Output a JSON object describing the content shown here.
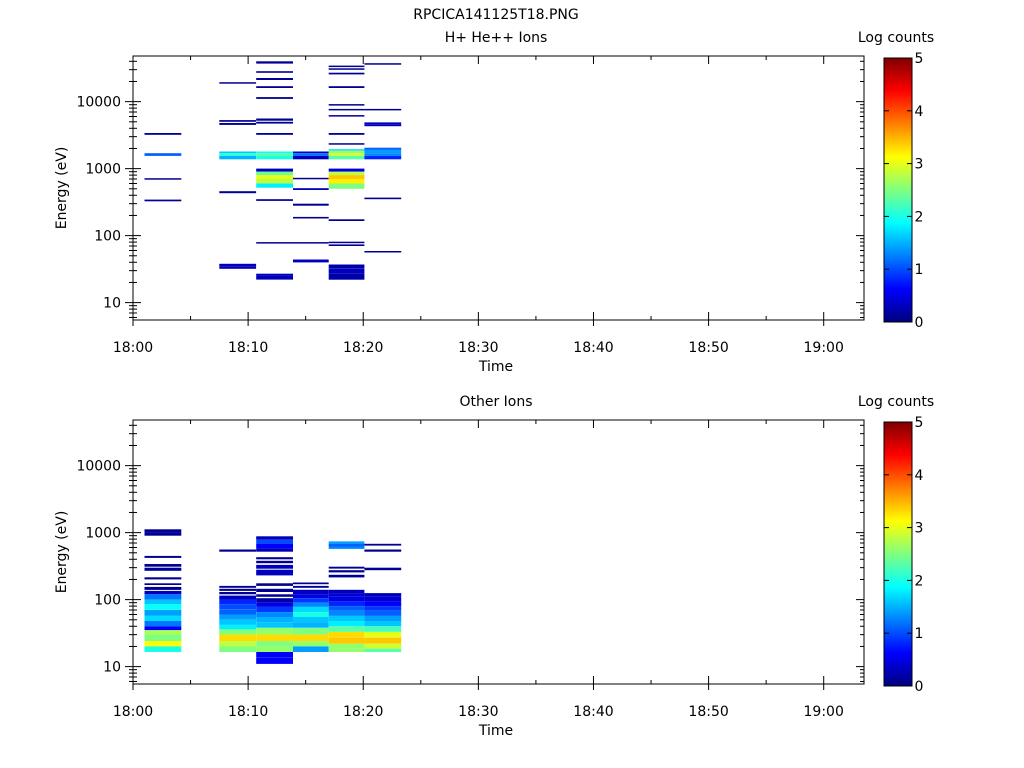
{
  "page_title": "RPCICA141125T18.PNG",
  "colormap": [
    "#00007f",
    "#0000ff",
    "#007fff",
    "#00ffff",
    "#7fff7f",
    "#ffff00",
    "#ff7f00",
    "#ff0000",
    "#7f0000"
  ],
  "chart_data": [
    {
      "type": "heatmap",
      "title": "H+ He++ Ions",
      "xlabel": "Time",
      "ylabel": "Energy (eV)",
      "x_tick_labels": [
        "18:00",
        "18:10",
        "18:20",
        "18:30",
        "18:40",
        "18:50",
        "19:00"
      ],
      "y_tick_labels": [
        "10",
        "100",
        "1000",
        "10000"
      ],
      "y_scale": "log",
      "ylim": [
        5.5,
        48000
      ],
      "xlim_minutes": [
        0,
        63.5
      ],
      "colorbar": {
        "label": "Log counts",
        "ticks": [
          "0",
          "1",
          "2",
          "3",
          "4",
          "5"
        ],
        "range": [
          0,
          5
        ]
      },
      "columns": [
        {
          "t0": 1.0,
          "t1": 4.2,
          "bins": [
            [
              3200,
              3400,
              0.1
            ],
            [
              1550,
              1700,
              1.1
            ],
            [
              690,
              720,
              0.1
            ],
            [
              325,
              345,
              0.1
            ]
          ]
        },
        {
          "t0": 7.5,
          "t1": 10.7,
          "bins": [
            [
              18500,
              19500,
              0.1
            ],
            [
              5000,
              5300,
              0.1
            ],
            [
              4500,
              4800,
              0.1
            ],
            [
              1700,
              1800,
              1.6
            ],
            [
              1550,
              1700,
              2.1
            ],
            [
              1380,
              1550,
              1.5
            ],
            [
              430,
              460,
              0.1
            ],
            [
              35,
              38,
              0.3
            ],
            [
              32,
              35,
              0.3
            ]
          ]
        },
        {
          "t0": 10.7,
          "t1": 13.9,
          "bins": [
            [
              37000,
              40000,
              0.1
            ],
            [
              27000,
              28500,
              0.1
            ],
            [
              21000,
              22500,
              0.1
            ],
            [
              16000,
              17000,
              0.1
            ],
            [
              11000,
              11700,
              0.1
            ],
            [
              5200,
              5600,
              0.1
            ],
            [
              4700,
              5000,
              0.1
            ],
            [
              3200,
              3400,
              0.1
            ],
            [
              1700,
              1800,
              1.9
            ],
            [
              1550,
              1700,
              2.3
            ],
            [
              1380,
              1550,
              2.0
            ],
            [
              900,
              1000,
              0.3
            ],
            [
              800,
              900,
              2.4
            ],
            [
              700,
              800,
              3.0
            ],
            [
              600,
              700,
              2.8
            ],
            [
              520,
              600,
              1.8
            ],
            [
              330,
              350,
              0.1
            ],
            [
              76,
              80,
              0.1
            ],
            [
              25,
              27,
              0.3
            ],
            [
              22,
              25,
              0.3
            ]
          ]
        },
        {
          "t0": 13.9,
          "t1": 17.0,
          "bins": [
            [
              1700,
              1800,
              0.3
            ],
            [
              1550,
              1700,
              1.2
            ],
            [
              1380,
              1550,
              0.3
            ],
            [
              700,
              730,
              0.1
            ],
            [
              480,
              510,
              0.3
            ],
            [
              280,
              300,
              0.1
            ],
            [
              180,
              190,
              0.1
            ],
            [
              77,
              80,
              0.1
            ],
            [
              42,
              44,
              0.3
            ],
            [
              40,
              42,
              0.3
            ]
          ]
        },
        {
          "t0": 17.0,
          "t1": 20.1,
          "bins": [
            [
              33000,
              34500,
              0.1
            ],
            [
              30000,
              31500,
              0.1
            ],
            [
              25500,
              27000,
              0.1
            ],
            [
              16000,
              17000,
              0.1
            ],
            [
              8800,
              9200,
              0.1
            ],
            [
              7400,
              7800,
              0.1
            ],
            [
              6000,
              6300,
              0.1
            ],
            [
              3200,
              3400,
              0.1
            ],
            [
              2300,
              2400,
              0.1
            ],
            [
              1850,
              1950,
              1.7
            ],
            [
              1700,
              1850,
              2.6
            ],
            [
              1550,
              1700,
              2.9
            ],
            [
              1380,
              1550,
              2.3
            ],
            [
              900,
              1000,
              0.5
            ],
            [
              800,
              900,
              2.8
            ],
            [
              700,
              800,
              3.4
            ],
            [
              600,
              700,
              3.2
            ],
            [
              500,
              600,
              2.5
            ],
            [
              165,
              175,
              0.1
            ],
            [
              78,
              81,
              0.1
            ],
            [
              70,
              74,
              0.1
            ],
            [
              32,
              37,
              0.2
            ],
            [
              27,
              32,
              0.3
            ],
            [
              22,
              27,
              0.2
            ]
          ]
        },
        {
          "t0": 20.1,
          "t1": 23.3,
          "bins": [
            [
              36000,
              37500,
              0.1
            ],
            [
              7400,
              7800,
              0.1
            ],
            [
              4600,
              4900,
              0.3
            ],
            [
              4300,
              4600,
              0.3
            ],
            [
              1900,
              2050,
              1.1
            ],
            [
              1700,
              1900,
              1.4
            ],
            [
              1550,
              1700,
              1.3
            ],
            [
              1380,
              1550,
              0.8
            ],
            [
              350,
              370,
              0.1
            ],
            [
              56,
              59,
              0.1
            ]
          ]
        }
      ]
    },
    {
      "type": "heatmap",
      "title": "Other Ions",
      "xlabel": "Time",
      "ylabel": "Energy (eV)",
      "x_tick_labels": [
        "18:00",
        "18:10",
        "18:20",
        "18:30",
        "18:40",
        "18:50",
        "19:00"
      ],
      "y_tick_labels": [
        "10",
        "100",
        "1000",
        "10000"
      ],
      "y_scale": "log",
      "ylim": [
        5.5,
        48000
      ],
      "xlim_minutes": [
        0,
        63.5
      ],
      "colorbar": {
        "label": "Log counts",
        "ticks": [
          "0",
          "1",
          "2",
          "3",
          "4",
          "5"
        ],
        "range": [
          0,
          5
        ]
      },
      "columns": [
        {
          "t0": 1.0,
          "t1": 4.2,
          "bins": [
            [
              1000,
              1120,
              0.1
            ],
            [
              900,
              1000,
              0.1
            ],
            [
              420,
              450,
              0.1
            ],
            [
              310,
              340,
              0.1
            ],
            [
              270,
              300,
              0.1
            ],
            [
              200,
              215,
              0.1
            ],
            [
              165,
              175,
              0.1
            ],
            [
              140,
              155,
              0.1
            ],
            [
              120,
              135,
              0.3
            ],
            [
              100,
              120,
              1.2
            ],
            [
              85,
              100,
              1.6
            ],
            [
              70,
              85,
              1.9
            ],
            [
              58,
              70,
              1.4
            ],
            [
              48,
              58,
              1.7
            ],
            [
              40,
              48,
              1.2
            ],
            [
              35,
              40,
              0.6
            ],
            [
              30,
              35,
              2.7
            ],
            [
              24,
              30,
              2.5
            ],
            [
              20,
              24,
              3.1
            ],
            [
              16.5,
              20,
              2.0
            ]
          ]
        },
        {
          "t0": 7.5,
          "t1": 10.7,
          "bins": [
            [
              520,
              560,
              0.1
            ],
            [
              150,
              160,
              0.1
            ],
            [
              135,
              145,
              0.1
            ],
            [
              120,
              130,
              0.1
            ],
            [
              100,
              115,
              0.3
            ],
            [
              85,
              100,
              0.8
            ],
            [
              72,
              85,
              1.0
            ],
            [
              60,
              72,
              1.1
            ],
            [
              50,
              60,
              1.4
            ],
            [
              42,
              50,
              1.6
            ],
            [
              36,
              42,
              1.8
            ],
            [
              30,
              36,
              2.5
            ],
            [
              24,
              30,
              3.3
            ],
            [
              20,
              24,
              2.8
            ],
            [
              16.5,
              20,
              2.5
            ]
          ]
        },
        {
          "t0": 10.7,
          "t1": 13.9,
          "bins": [
            [
              780,
              880,
              0.3
            ],
            [
              680,
              780,
              1.0
            ],
            [
              580,
              680,
              0.6
            ],
            [
              520,
              580,
              0.3
            ],
            [
              400,
              430,
              0.1
            ],
            [
              350,
              380,
              0.1
            ],
            [
              290,
              330,
              0.3
            ],
            [
              230,
              280,
              0.3
            ],
            [
              160,
              175,
              0.1
            ],
            [
              130,
              145,
              0.1
            ],
            [
              110,
              120,
              0.1
            ],
            [
              90,
              105,
              0.2
            ],
            [
              78,
              90,
              0.5
            ],
            [
              65,
              78,
              0.9
            ],
            [
              55,
              65,
              1.3
            ],
            [
              46,
              55,
              1.5
            ],
            [
              38,
              46,
              1.6
            ],
            [
              30,
              38,
              2.6
            ],
            [
              24,
              30,
              3.3
            ],
            [
              20,
              24,
              2.5
            ],
            [
              16.5,
              20,
              2.6
            ],
            [
              13.5,
              16.5,
              0.6
            ],
            [
              11,
              13.5,
              0.6
            ]
          ]
        },
        {
          "t0": 13.9,
          "t1": 17.0,
          "bins": [
            [
              170,
              180,
              0.1
            ],
            [
              150,
              160,
              0.1
            ],
            [
              120,
              140,
              0.3
            ],
            [
              105,
              120,
              0.5
            ],
            [
              90,
              105,
              0.9
            ],
            [
              78,
              90,
              1.3
            ],
            [
              65,
              78,
              1.7
            ],
            [
              55,
              65,
              2.0
            ],
            [
              46,
              55,
              1.6
            ],
            [
              38,
              46,
              1.5
            ],
            [
              30,
              38,
              2.5
            ],
            [
              24,
              30,
              3.3
            ],
            [
              20,
              24,
              2.6
            ],
            [
              16.5,
              20,
              1.4
            ]
          ]
        },
        {
          "t0": 17.0,
          "t1": 20.1,
          "bins": [
            [
              680,
              740,
              1.4
            ],
            [
              620,
              680,
              1.1
            ],
            [
              570,
              620,
              1.3
            ],
            [
              290,
              310,
              0.1
            ],
            [
              255,
              275,
              0.1
            ],
            [
              215,
              235,
              0.1
            ],
            [
              125,
              140,
              0.3
            ],
            [
              110,
              125,
              0.4
            ],
            [
              95,
              110,
              0.5
            ],
            [
              80,
              95,
              0.8
            ],
            [
              68,
              80,
              1.1
            ],
            [
              57,
              68,
              1.3
            ],
            [
              48,
              57,
              1.6
            ],
            [
              40,
              48,
              1.8
            ],
            [
              33,
              40,
              2.3
            ],
            [
              27,
              33,
              3.3
            ],
            [
              22,
              27,
              3.4
            ],
            [
              18.5,
              22,
              2.6
            ],
            [
              16.5,
              18.5,
              2.6
            ]
          ]
        },
        {
          "t0": 20.1,
          "t1": 23.3,
          "bins": [
            [
              640,
              680,
              0.1
            ],
            [
              520,
              560,
              0.1
            ],
            [
              275,
              300,
              0.1
            ],
            [
              110,
              125,
              0.3
            ],
            [
              95,
              110,
              0.4
            ],
            [
              80,
              95,
              0.6
            ],
            [
              68,
              80,
              0.9
            ],
            [
              57,
              68,
              1.1
            ],
            [
              48,
              57,
              1.4
            ],
            [
              40,
              48,
              1.6
            ],
            [
              33,
              40,
              2.2
            ],
            [
              27,
              33,
              3.0
            ],
            [
              22,
              27,
              3.4
            ],
            [
              18.5,
              22,
              2.9
            ],
            [
              16.5,
              18.5,
              2.3
            ]
          ]
        }
      ]
    }
  ]
}
